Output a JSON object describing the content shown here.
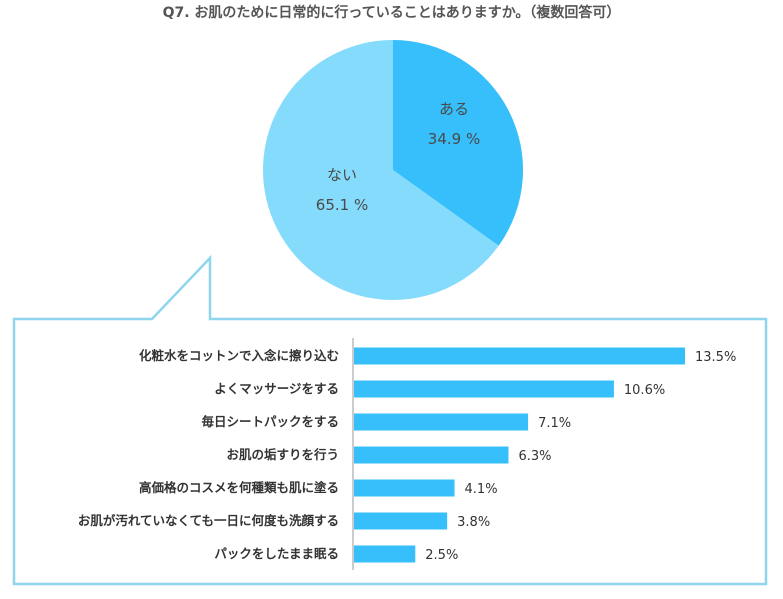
{
  "title": "Q7. お肌のために日常的に行っていることはありますか。（複数回答可）",
  "colors": {
    "pie_yes": "#36BFFA",
    "pie_no": "#85DBFC",
    "bar": "#36BFFA",
    "callout_border": "#8ED6EE",
    "axis": "#999999"
  },
  "chart_data": [
    {
      "type": "pie",
      "slices": [
        {
          "label": "ある",
          "value": 34.9,
          "display": "34.9 %"
        },
        {
          "label": "ない",
          "value": 65.1,
          "display": "65.1 %"
        }
      ]
    },
    {
      "type": "bar",
      "orientation": "horizontal",
      "categories": [
        "化粧水をコットンで入念に擦り込む",
        "よくマッサージをする",
        "毎日シートパックをする",
        "お肌の垢すりを行う",
        "高価格のコスメを何種類も肌に塗る",
        "お肌が汚れていなくても一日に何度も洗顔する",
        "パックをしたまま眠る"
      ],
      "values": [
        13.5,
        10.6,
        7.1,
        6.3,
        4.1,
        3.8,
        2.5
      ],
      "value_labels": [
        "13.5%",
        "10.6%",
        "7.1%",
        "6.3%",
        "4.1%",
        "3.8%",
        "2.5%"
      ],
      "xlim": [
        0,
        13.5
      ],
      "grid": false
    }
  ]
}
